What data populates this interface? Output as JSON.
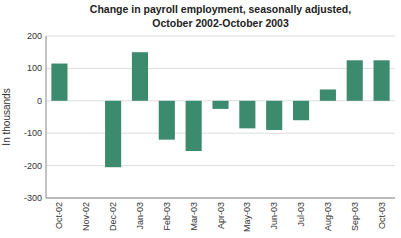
{
  "chart_data": {
    "type": "bar",
    "title": "Change in payroll employment, seasonally adjusted,",
    "subtitle": "October 2002-October 2003",
    "y_label": "In thousands",
    "categories": [
      "Oct-02",
      "Nov-02",
      "Dec-02",
      "Jan-03",
      "Feb-03",
      "Mar-03",
      "Apr-03",
      "May-03",
      "Jun-03",
      "Jul-03",
      "Aug-03",
      "Sep-03",
      "Oct-03"
    ],
    "values": [
      115,
      0,
      -205,
      150,
      -120,
      -155,
      -25,
      -85,
      -90,
      -60,
      35,
      125,
      125
    ],
    "color": "#3d8b6e",
    "ylim": [
      -300,
      200
    ],
    "yticks": [
      -300,
      -200,
      -100,
      0,
      100,
      200
    ],
    "grid": true
  }
}
